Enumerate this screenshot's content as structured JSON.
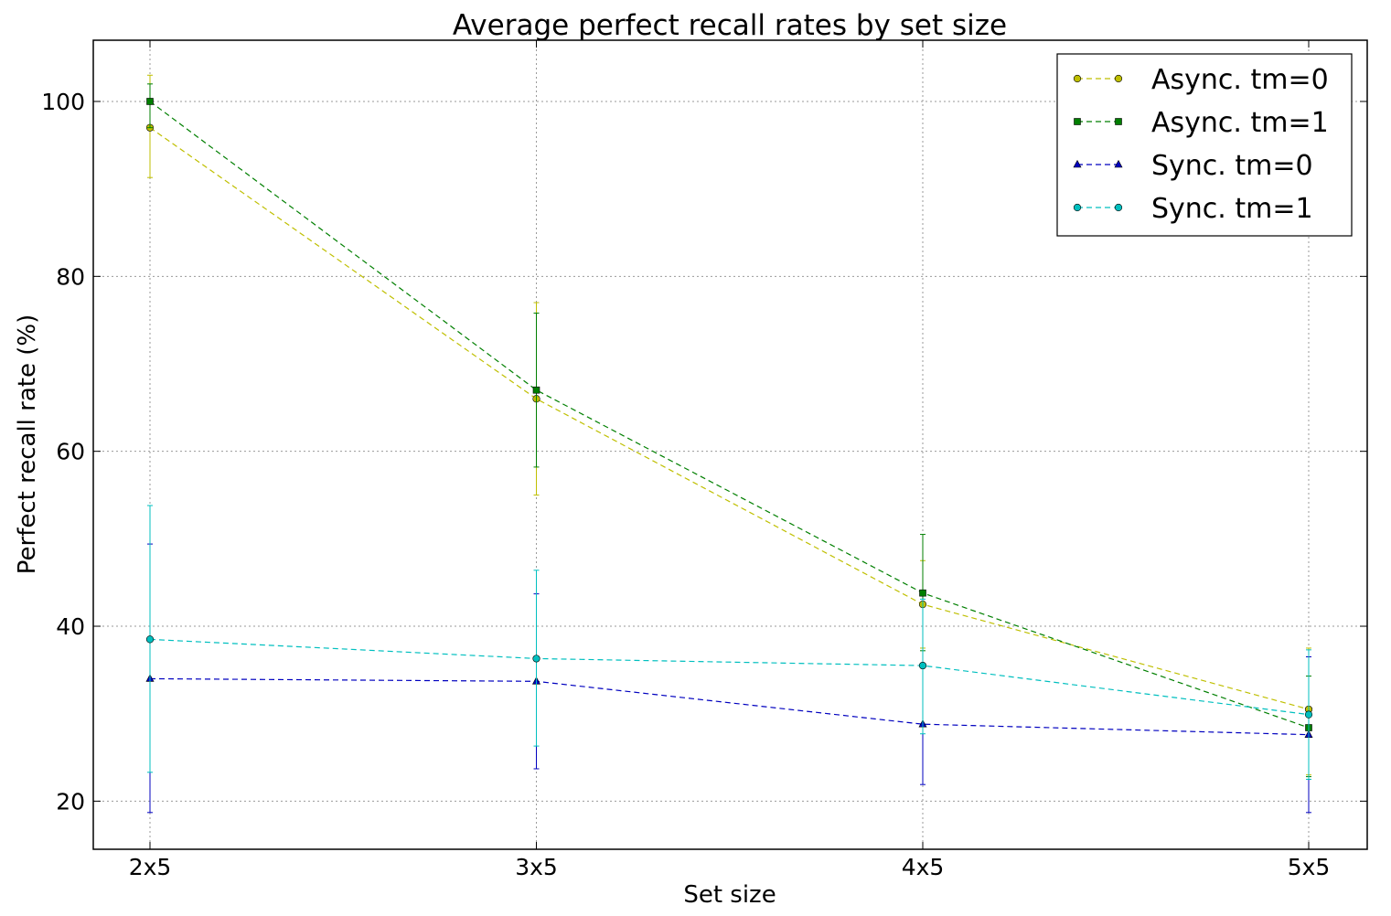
{
  "chart_data": {
    "type": "line",
    "title": "Average perfect recall rates by set size",
    "xlabel": "Set size",
    "ylabel": "Perfect recall rate (%)",
    "categories": [
      "2x5",
      "3x5",
      "4x5",
      "5x5"
    ],
    "ylim": [
      14.5,
      107
    ],
    "yticks": [
      20,
      40,
      60,
      80,
      100
    ],
    "grid": true,
    "legend_position": "top-right",
    "series": [
      {
        "name": "Async. tm=0",
        "color": "#bfbf00",
        "marker": "circle",
        "line_style": "dashed",
        "values": [
          97.0,
          66.0,
          42.5,
          30.5
        ],
        "error_low": [
          91.3,
          55.0,
          37.5,
          23.0
        ],
        "error_high": [
          103.0,
          77.0,
          47.5,
          37.5
        ]
      },
      {
        "name": "Async. tm=1",
        "color": "#007f00",
        "marker": "square",
        "line_style": "dashed",
        "values": [
          100.0,
          67.0,
          43.8,
          28.4
        ],
        "error_low": [
          97.0,
          58.2,
          37.2,
          22.8
        ],
        "error_high": [
          102.0,
          75.8,
          50.5,
          34.3
        ]
      },
      {
        "name": "Sync. tm=0",
        "color": "#0000bf",
        "marker": "triangle",
        "line_style": "dashed",
        "values": [
          34.0,
          33.7,
          28.8,
          27.6
        ],
        "error_low": [
          18.7,
          23.7,
          21.9,
          18.7
        ],
        "error_high": [
          49.4,
          43.7,
          35.5,
          36.5
        ]
      },
      {
        "name": "Sync. tm=1",
        "color": "#00bfbf",
        "marker": "circle",
        "line_style": "dashed",
        "values": [
          38.5,
          36.3,
          35.5,
          29.9
        ],
        "error_low": [
          23.3,
          26.3,
          27.7,
          22.5
        ],
        "error_high": [
          53.8,
          46.4,
          43.1,
          37.3
        ]
      }
    ]
  }
}
